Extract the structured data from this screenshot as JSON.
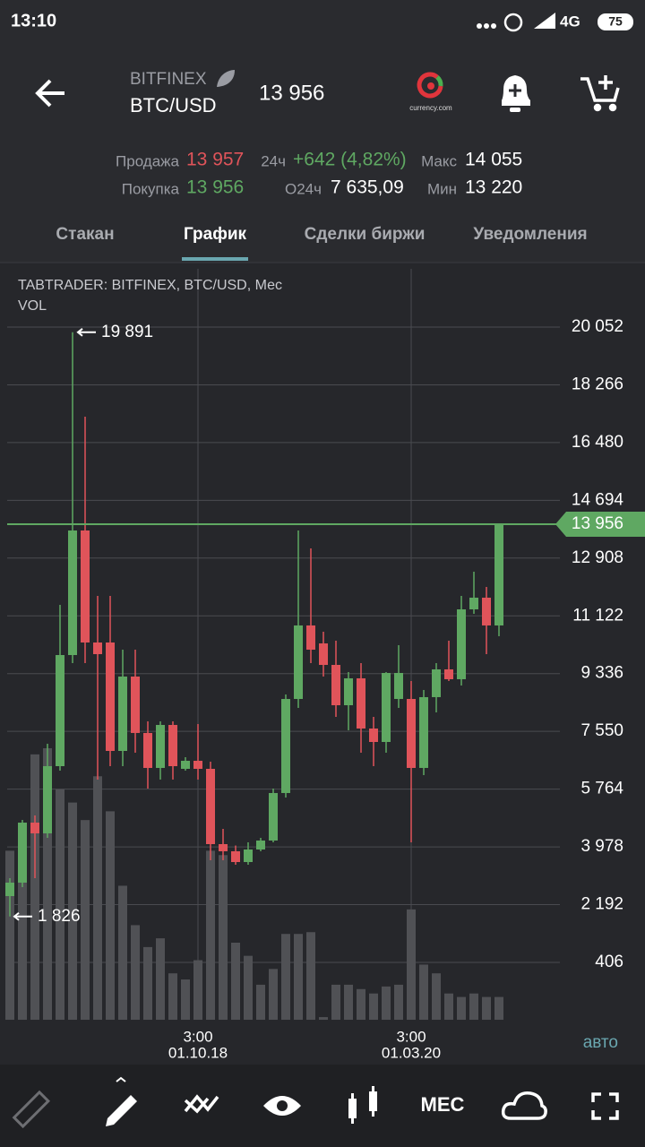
{
  "status_bar": {
    "time": "13:10",
    "network": "4G",
    "battery": "75"
  },
  "header": {
    "exchange": "BITFINEX",
    "pair": "BTC/USD",
    "price": "13 956",
    "logo_text": "currency.com"
  },
  "stats": {
    "sell_label": "Продажа",
    "sell": "13 957",
    "buy_label": "Покупка",
    "buy": "13 956",
    "change_label": "24ч",
    "change": "+642 (4,82%)",
    "volume_label": "О24ч",
    "volume": "7 635,09",
    "max_label": "Макс",
    "max": "14 055",
    "min_label": "Мин",
    "min": "13 220"
  },
  "tabs": [
    "Стакан",
    "График",
    "Сделки биржи",
    "Уведомления"
  ],
  "chart_data": {
    "type": "candlestick",
    "title": "TABTRADER: BITFINEX, BTC/USD, Мес",
    "volume_title": "VOL",
    "categories": [
      null,
      null,
      null,
      null,
      null,
      null,
      null,
      null,
      null,
      null,
      null,
      null,
      null,
      null,
      null,
      null,
      null,
      null,
      null,
      null,
      null,
      null,
      null,
      null,
      null,
      null,
      null,
      null,
      null,
      null,
      null,
      null,
      null,
      null,
      null,
      null,
      null,
      null,
      null,
      null
    ],
    "open": [
      2456,
      2872,
      4728,
      4396,
      6474,
      9910,
      13762,
      10298,
      10298,
      6945,
      9245,
      7500,
      6419,
      7749,
      6391,
      6640,
      6391,
      4063,
      3842,
      3509,
      3897,
      4174,
      5643,
      8552,
      10825,
      10270,
      9605,
      8358,
      9190,
      7638,
      7222,
      8552,
      8552,
      6419,
      8608,
      9467,
      9162,
      11323,
      11684,
      10825
    ],
    "high": [
      3010,
      4811,
      4950,
      7167,
      11462,
      19891,
      17281,
      11739,
      11739,
      10076,
      10076,
      7860,
      7860,
      7860,
      6751,
      7776,
      6612,
      4534,
      4020,
      4119,
      4257,
      5781,
      8691,
      13762,
      13208,
      10631,
      10354,
      9384,
      9661,
      7998,
      9384,
      10215,
      9107,
      8830,
      9661,
      10354,
      11739,
      12487,
      12016,
      13956
    ],
    "low": [
      1826,
      2733,
      3010,
      4257,
      6336,
      9661,
      9661,
      6059,
      6474,
      6474,
      6890,
      5781,
      6059,
      6059,
      6336,
      6059,
      3564,
      3564,
      3426,
      3426,
      3842,
      4119,
      5504,
      8275,
      9661,
      9245,
      7998,
      7583,
      6890,
      6474,
      6890,
      8275,
      4119,
      6197,
      8137,
      9107,
      8968,
      11185,
      9938,
      10492
    ],
    "close": [
      2872,
      4728,
      4396,
      6474,
      9910,
      13762,
      10298,
      9938,
      6945,
      9245,
      7500,
      6419,
      7749,
      6474,
      6640,
      6391,
      4063,
      3842,
      3509,
      3897,
      4174,
      5643,
      8552,
      10825,
      10076,
      9605,
      8358,
      9190,
      7638,
      7222,
      9356,
      9356,
      6419,
      8608,
      9467,
      9162,
      11323,
      11684,
      10825,
      13956
    ],
    "volume": [
      193,
      218,
      303,
      310,
      263,
      248,
      228,
      278,
      238,
      153,
      108,
      83,
      93,
      53,
      46,
      68,
      193,
      188,
      88,
      73,
      40,
      58,
      98,
      98,
      100,
      3,
      40,
      40,
      35,
      30,
      38,
      40,
      126,
      63,
      53,
      30,
      26,
      30,
      26,
      26
    ],
    "colors": {
      "up": "#5fa862",
      "down": "#e0545a",
      "volume": "#505155"
    },
    "ylim": [
      -1368,
      21853
    ],
    "yticks": [
      {
        "value": 406,
        "label": "406"
      },
      {
        "value": 2192,
        "label": "2 192"
      },
      {
        "value": 3978,
        "label": "3 978"
      },
      {
        "value": 5764,
        "label": "5 764"
      },
      {
        "value": 7550,
        "label": "7 550"
      },
      {
        "value": 9336,
        "label": "9 336"
      },
      {
        "value": 11122,
        "label": "11 122"
      },
      {
        "value": 12908,
        "label": "12 908"
      },
      {
        "value": 14694,
        "label": "14 694"
      },
      {
        "value": 16480,
        "label": "16 480"
      },
      {
        "value": 18266,
        "label": "18 266"
      },
      {
        "value": 20052,
        "label": "20 052"
      }
    ],
    "xticks": [
      {
        "value": 15,
        "label": "3:00",
        "sublabel": "01.10.18"
      },
      {
        "value": 32,
        "label": "3:00",
        "sublabel": "01.03.20"
      }
    ],
    "high_annotation": {
      "index": 5,
      "value": 19891,
      "label": "19 891"
    },
    "low_annotation": {
      "index": 0,
      "value": 1826,
      "label": "1 826"
    },
    "last_price": {
      "value": 13956,
      "label": "13 956"
    },
    "scale_mode": "авто",
    "grid": true
  },
  "toolbar": {
    "period": "МЕС"
  }
}
